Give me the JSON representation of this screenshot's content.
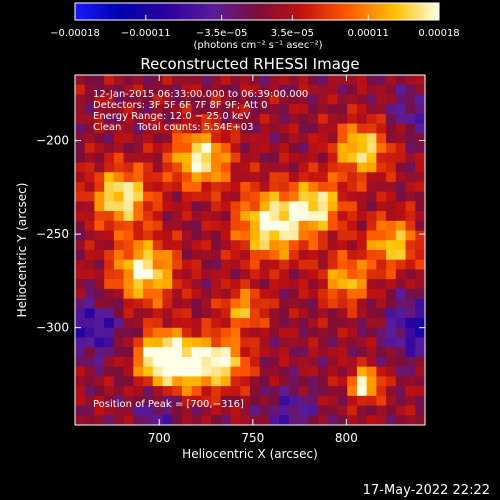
{
  "chart_data": {
    "type": "heatmap",
    "title": "Reconstructed RHESSI Image",
    "xlabel": "Heliocentric X (arcsec)",
    "ylabel": "Heliocentric Y (arcsec)",
    "xlim": [
      655,
      842
    ],
    "ylim": [
      -352,
      -165
    ],
    "x_ticks": [
      700,
      750,
      800
    ],
    "y_ticks": [
      -200,
      -250,
      -300
    ],
    "colorbar": {
      "range": [
        -0.00018,
        0.00018
      ],
      "tick_values": [
        -0.00018,
        -0.00011,
        -3.5e-05,
        3.5e-05,
        0.00011,
        0.00018
      ],
      "tick_labels": [
        "−0.00018",
        "−0.00011",
        "−3.5e−05",
        "3.5e−05",
        "0.00011",
        "0.00018"
      ],
      "units_label": "(photons cm⁻² s⁻¹ asec⁻²)"
    },
    "info_lines": [
      "12-Jan-2015 06:33:00.000 to 06:39:00.000",
      "Detectors: 3F 5F 6F 7F 8F 9F; Att 0",
      "Energy Range: 12.0 − 25.0 keV",
      "Clean     Total counts: 5.54E+03"
    ],
    "peak_label": "Position of Peak = [700,−316]",
    "grid": false,
    "image_grid": {
      "rows": 36,
      "cols": 36,
      "value_range": [
        -0.00018,
        0.00018
      ],
      "blobs": [
        {
          "x": 700,
          "y": -316,
          "amp": 0.00018,
          "sigma": 9
        },
        {
          "x": 715,
          "y": -320,
          "amp": 0.00015,
          "sigma": 11
        },
        {
          "x": 735,
          "y": -318,
          "amp": 0.00014,
          "sigma": 9
        },
        {
          "x": 760,
          "y": -245,
          "amp": 0.00017,
          "sigma": 13
        },
        {
          "x": 785,
          "y": -235,
          "amp": 0.00014,
          "sigma": 10
        },
        {
          "x": 680,
          "y": -230,
          "amp": 0.00016,
          "sigma": 11
        },
        {
          "x": 692,
          "y": -270,
          "amp": 0.00016,
          "sigma": 12
        },
        {
          "x": 722,
          "y": -210,
          "amp": 0.00016,
          "sigma": 11
        },
        {
          "x": 808,
          "y": -205,
          "amp": 0.00015,
          "sigma": 10
        },
        {
          "x": 825,
          "y": -255,
          "amp": 0.00013,
          "sigma": 10
        },
        {
          "x": 800,
          "y": -275,
          "amp": 0.00012,
          "sigma": 9
        },
        {
          "x": 810,
          "y": -330,
          "amp": 0.00017,
          "sigma": 6
        },
        {
          "x": 745,
          "y": -290,
          "amp": 0.00011,
          "sigma": 8
        },
        {
          "x": 665,
          "y": -300,
          "amp": -9e-05,
          "sigma": 12
        },
        {
          "x": 838,
          "y": -300,
          "amp": -0.0001,
          "sigma": 12
        },
        {
          "x": 700,
          "y": -345,
          "amp": -6e-05,
          "sigma": 10
        },
        {
          "x": 770,
          "y": -345,
          "amp": -7e-05,
          "sigma": 10
        },
        {
          "x": 835,
          "y": -185,
          "amp": -6e-05,
          "sigma": 9
        }
      ]
    }
  },
  "footer": {
    "timestamp": "17-May-2022 22:22"
  }
}
